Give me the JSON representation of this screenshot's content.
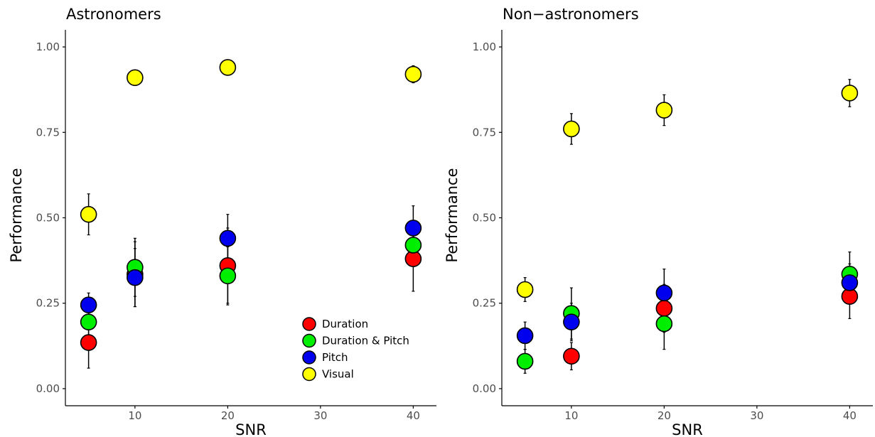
{
  "chart_data": [
    {
      "type": "scatter",
      "title": "Astronomers",
      "xlabel": "SNR",
      "ylabel": "Performance",
      "xticks": [
        "10",
        "20",
        "30",
        "40"
      ],
      "yticks": [
        "0.00",
        "0.25",
        "0.50",
        "0.75",
        "1.00"
      ],
      "xlim": [
        2.5,
        42.5
      ],
      "ylim": [
        -0.05,
        1.05
      ],
      "series": [
        {
          "name": "Duration",
          "color": "#ff0000",
          "x": [
            5,
            10,
            20,
            40
          ],
          "y": [
            0.135,
            0.335,
            0.36,
            0.38
          ],
          "err": [
            0.075,
            0.095,
            0.11,
            0.095
          ]
        },
        {
          "name": "Duration & Pitch",
          "color": "#00ee00",
          "x": [
            5,
            10,
            20,
            40
          ],
          "y": [
            0.195,
            0.355,
            0.33,
            0.42
          ],
          "err": [
            0.04,
            0.085,
            0.085,
            0.06
          ]
        },
        {
          "name": "Pitch",
          "color": "#0000ee",
          "x": [
            5,
            10,
            20,
            40
          ],
          "y": [
            0.245,
            0.325,
            0.44,
            0.47
          ],
          "err": [
            0.035,
            0.085,
            0.07,
            0.065
          ]
        },
        {
          "name": "Visual",
          "color": "#ffff00",
          "x": [
            5,
            10,
            20,
            40
          ],
          "y": [
            0.51,
            0.91,
            0.94,
            0.92
          ],
          "err": [
            0.06,
            0.015,
            0.015,
            0.025
          ]
        }
      ],
      "legend": {
        "position": "bottom-right",
        "entries": [
          "Duration",
          "Duration & Pitch",
          "Pitch",
          "Visual"
        ]
      }
    },
    {
      "type": "scatter",
      "title": "Non−astronomers",
      "xlabel": "SNR",
      "ylabel": "Performance",
      "xticks": [
        "10",
        "20",
        "30",
        "40"
      ],
      "yticks": [
        "0.00",
        "0.25",
        "0.50",
        "0.75",
        "1.00"
      ],
      "xlim": [
        2.5,
        42.5
      ],
      "ylim": [
        -0.05,
        1.05
      ],
      "series": [
        {
          "name": "Duration",
          "color": "#ff0000",
          "x": [
            10,
            20,
            40
          ],
          "y": [
            0.095,
            0.235,
            0.27
          ],
          "err": [
            0.04,
            0.07,
            0.065
          ]
        },
        {
          "name": "Duration & Pitch",
          "color": "#00ee00",
          "x": [
            5,
            10,
            20,
            40
          ],
          "y": [
            0.08,
            0.22,
            0.19,
            0.335
          ],
          "err": [
            0.035,
            0.075,
            0.075,
            0.065
          ]
        },
        {
          "name": "Pitch",
          "color": "#0000ee",
          "x": [
            5,
            10,
            20,
            40
          ],
          "y": [
            0.155,
            0.195,
            0.28,
            0.31
          ],
          "err": [
            0.04,
            0.055,
            0.07,
            0.055
          ]
        },
        {
          "name": "Visual",
          "color": "#ffff00",
          "x": [
            5,
            10,
            20,
            40
          ],
          "y": [
            0.29,
            0.76,
            0.815,
            0.865
          ],
          "err": [
            0.035,
            0.045,
            0.045,
            0.04
          ]
        }
      ]
    }
  ]
}
